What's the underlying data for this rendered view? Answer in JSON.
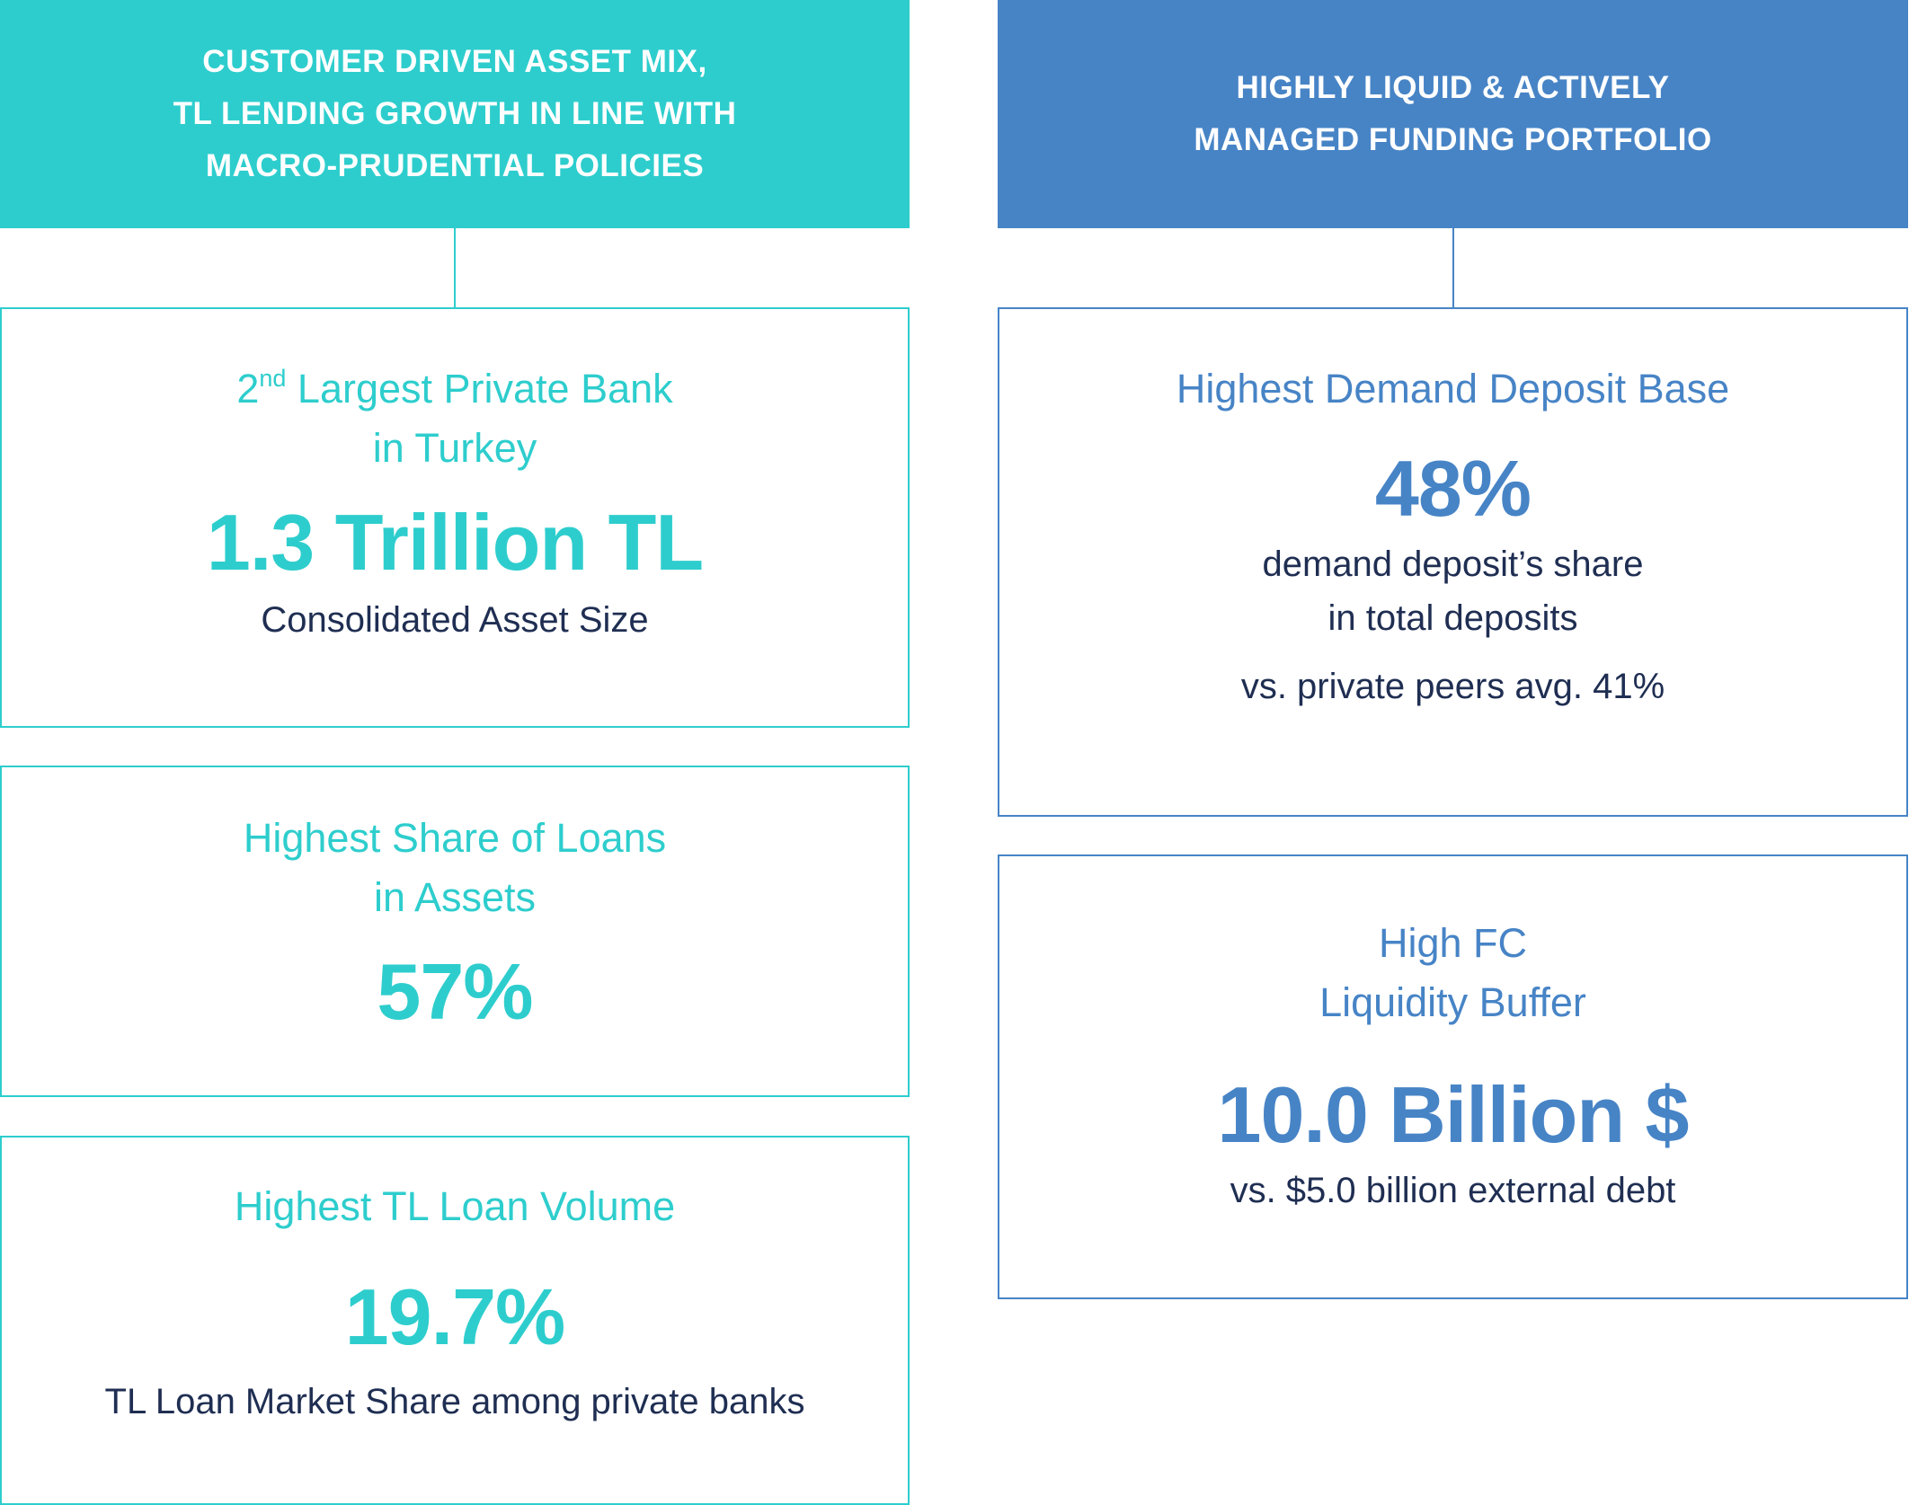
{
  "left": {
    "header": {
      "lines": [
        "CUSTOMER DRIVEN ASSET MIX,",
        "TL LENDING GROWTH IN LINE WITH",
        "MACRO-PRUDENTIAL POLICIES"
      ],
      "color": "#2ecdcd"
    },
    "boxes": [
      {
        "title_prefix": "2",
        "title_sup": "nd",
        "title_line1": " Largest Private Bank",
        "title_line2": "in Turkey",
        "value": "1.3 Trillion TL",
        "desc": "Consolidated Asset Size"
      },
      {
        "title_line1": "Highest Share of Loans",
        "title_line2": "in Assets",
        "value": "57%"
      },
      {
        "title_line1": "Highest TL Loan Volume",
        "value": "19.7%",
        "desc": "TL Loan Market Share among private banks"
      }
    ]
  },
  "right": {
    "header": {
      "lines": [
        "HIGHLY LIQUID & ACTIVELY",
        "MANAGED FUNDING PORTFOLIO"
      ],
      "color": "#4784c6"
    },
    "boxes": [
      {
        "title_line1": "Highest Demand Deposit Base",
        "value": "48%",
        "desc_line1": "demand deposit’s share",
        "desc_line2": "in total deposits",
        "desc_line3": "vs. private peers avg. 41%"
      },
      {
        "title_line1": "High FC",
        "title_line2": "Liquidity Buffer",
        "value": "10.0 Billion $",
        "desc": "vs. $5.0 billion external debt"
      }
    ]
  },
  "colors": {
    "teal": "#2ecdcd",
    "blue": "#4784c6",
    "navy_text": "#1f2e52"
  }
}
